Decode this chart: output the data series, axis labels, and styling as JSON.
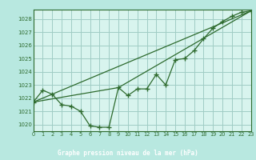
{
  "title": "Graphe pression niveau de la mer (hPa)",
  "background_color": "#b8e8e0",
  "plot_bg_color": "#d8f4ee",
  "grid_color": "#a0ccc4",
  "line_color": "#2d6a2d",
  "border_color": "#2d6a2d",
  "label_bg": "#3a7a3a",
  "xlim": [
    0,
    23
  ],
  "ylim": [
    1019.5,
    1028.7
  ],
  "yticks": [
    1020,
    1021,
    1022,
    1023,
    1024,
    1025,
    1026,
    1027,
    1028
  ],
  "xticks": [
    0,
    1,
    2,
    3,
    4,
    5,
    6,
    7,
    8,
    9,
    10,
    11,
    12,
    13,
    14,
    15,
    16,
    17,
    18,
    19,
    20,
    21,
    22,
    23
  ],
  "series1_x": [
    0,
    1,
    2,
    3,
    4,
    5,
    6,
    7,
    8,
    9,
    10,
    11,
    12,
    13,
    14,
    15,
    16,
    17,
    18,
    19,
    20,
    21,
    22,
    23
  ],
  "series1_y": [
    1021.7,
    1022.6,
    1022.3,
    1021.5,
    1021.4,
    1021.0,
    1019.9,
    1019.8,
    1019.8,
    1022.8,
    1022.2,
    1022.7,
    1022.7,
    1023.8,
    1023.0,
    1024.9,
    1025.0,
    1025.6,
    1026.5,
    1027.3,
    1027.8,
    1028.2,
    1028.5,
    1028.6
  ],
  "series2_x": [
    0,
    9,
    23
  ],
  "series2_y": [
    1021.7,
    1022.8,
    1028.6
  ],
  "series3_x": [
    0,
    23
  ],
  "series3_y": [
    1021.7,
    1028.6
  ]
}
